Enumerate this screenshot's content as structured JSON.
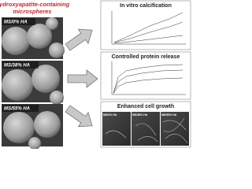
{
  "header": {
    "title_lines": [
      "Hydroxyapatite-containing",
      "microspheres"
    ]
  },
  "micrographs": [
    {
      "label": "MS/0% HA"
    },
    {
      "label": "MS/38% HA"
    },
    {
      "label": "MS/55% HA"
    }
  ],
  "results": [
    {
      "title": "In vitro calcification"
    },
    {
      "title": "Controlled protein release"
    },
    {
      "title": "Enhanced cell growth",
      "panels": [
        "MS/0% HA",
        "MS/38% HA",
        "MS/55% HA"
      ]
    }
  ]
}
